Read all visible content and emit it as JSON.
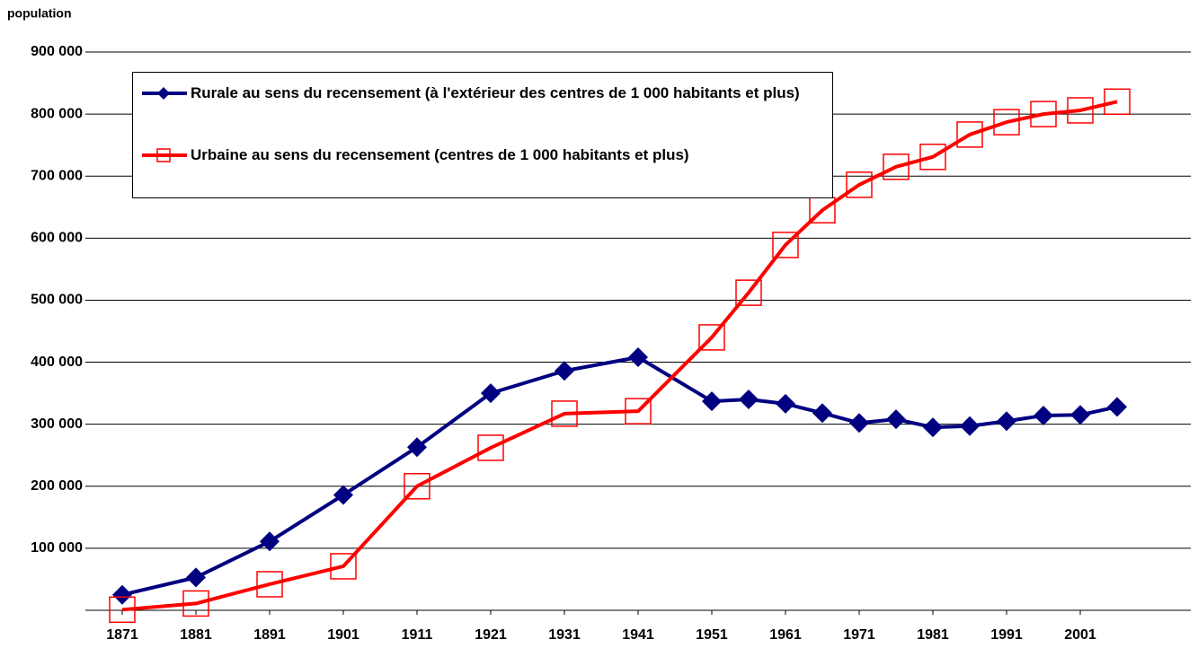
{
  "chart_data": {
    "type": "line",
    "y_label": "population",
    "x": [
      1871,
      1881,
      1891,
      1901,
      1911,
      1921,
      1931,
      1941,
      1951,
      1956,
      1961,
      1966,
      1971,
      1976,
      1981,
      1986,
      1991,
      1996,
      2001,
      2006
    ],
    "xlim": [
      1866,
      2016
    ],
    "xticks": [
      1871,
      1881,
      1891,
      1901,
      1911,
      1921,
      1931,
      1941,
      1951,
      1961,
      1971,
      1981,
      1991,
      2001
    ],
    "ylim": [
      0,
      900000
    ],
    "yticks": [
      {
        "value": 100000,
        "label": "100 000"
      },
      {
        "value": 200000,
        "label": "200 000"
      },
      {
        "value": 300000,
        "label": "300 000"
      },
      {
        "value": 400000,
        "label": "400 000"
      },
      {
        "value": 500000,
        "label": "500 000"
      },
      {
        "value": 600000,
        "label": "600 000"
      },
      {
        "value": 700000,
        "label": "700 000"
      },
      {
        "value": 800000,
        "label": "800 000"
      },
      {
        "value": 900000,
        "label": "900 000"
      }
    ],
    "grid": true,
    "legend": "upper left",
    "series": [
      {
        "name": "Rurale au sens du recensement (à l'extérieur des centres de 1 000 habitants et plus)",
        "color": "#000080",
        "marker": "diamond",
        "values": [
          25000,
          53000,
          111000,
          186000,
          263000,
          350000,
          386000,
          408000,
          337000,
          340000,
          333000,
          318000,
          302000,
          308000,
          295000,
          297000,
          305000,
          314000,
          315000,
          328000
        ]
      },
      {
        "name": "Urbaine au sens du recensement (centres de 1 000 habitants et plus)",
        "color": "#ff0000",
        "marker": "square",
        "values": [
          1000,
          11000,
          42000,
          71000,
          200000,
          262000,
          317000,
          321000,
          440000,
          512000,
          589000,
          645000,
          686000,
          715000,
          731000,
          767000,
          787000,
          800000,
          806000,
          820000
        ]
      }
    ]
  }
}
